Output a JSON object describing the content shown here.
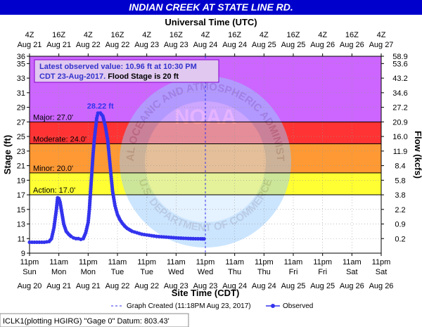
{
  "title": "INDIAN CREEK AT STATE LINE RD.",
  "top_axis_title": "Universal Time (UTC)",
  "bottom_axis_title": "Site Time (CDT)",
  "left_axis_title": "Stage (ft)",
  "right_axis_title": "Flow (kcfs)",
  "info_box": {
    "line1": "Latest observed value: 10.96 ft at 10:30 PM",
    "line2_blue": "CDT 23-Aug-2017.",
    "line2_black": " Flood Stage is 20 ft"
  },
  "peak_label": "28.22 ft",
  "legend": {
    "created_label": "Graph Created (11:18PM Aug 23, 2017)",
    "observed_label": "Observed"
  },
  "footer": "ICLK1(plotting HGIRG) \"Gage 0\" Datum: 803.43'",
  "watermark": {
    "center": "NOAA",
    "top_arc": "NATIONAL OCEANIC AND ATMOSPHERIC ADMINISTRATION",
    "bottom_arc": "U.S. DEPARTMENT OF COMMERCE"
  },
  "colors": {
    "title_bg": "#0000cc",
    "series": "#3333ee",
    "major": "#cc66ff",
    "moderate": "#ff3333",
    "minor": "#ff9933",
    "action": "#ffff33",
    "info_bg": "#e0c8f0",
    "info_border": "#8800cc",
    "info_blue": "#3333cc"
  },
  "chart_data": {
    "type": "line",
    "title": "INDIAN CREEK AT STATE LINE RD.",
    "xlabel": "Site Time (CDT)",
    "ylabel": "Stage (ft)",
    "y2label": "Flow (kcfs)",
    "ylim": [
      9,
      36
    ],
    "y_ticks": [
      9,
      11,
      13,
      15,
      17,
      19,
      21,
      23,
      25,
      27,
      29,
      31,
      33,
      35,
      36
    ],
    "y2_ticks": [
      {
        "stage": 11,
        "label": "0.2"
      },
      {
        "stage": 13,
        "label": "0.9"
      },
      {
        "stage": 15,
        "label": "2.2"
      },
      {
        "stage": 17,
        "label": "3.8"
      },
      {
        "stage": 19,
        "label": "5.8"
      },
      {
        "stage": 21,
        "label": "8.4"
      },
      {
        "stage": 23,
        "label": "11.9"
      },
      {
        "stage": 25,
        "label": "16.0"
      },
      {
        "stage": 27,
        "label": "20.9"
      },
      {
        "stage": 29,
        "label": "27.2"
      },
      {
        "stage": 31,
        "label": "34.6"
      },
      {
        "stage": 33,
        "label": "43.2"
      },
      {
        "stage": 35,
        "label": "53.6"
      },
      {
        "stage": 36,
        "label": "58.9"
      }
    ],
    "x_ticks_bottom": [
      {
        "l1": "11pm",
        "l2": "Sun",
        "l3": "Aug 20"
      },
      {
        "l1": "11am",
        "l2": "Mon",
        "l3": "Aug 21"
      },
      {
        "l1": "11pm",
        "l2": "Mon",
        "l3": "Aug 21"
      },
      {
        "l1": "11am",
        "l2": "Tue",
        "l3": "Aug 22"
      },
      {
        "l1": "11pm",
        "l2": "Tue",
        "l3": "Aug 22"
      },
      {
        "l1": "11am",
        "l2": "Wed",
        "l3": "Aug 23"
      },
      {
        "l1": "11pm",
        "l2": "Wed",
        "l3": "Aug 23"
      },
      {
        "l1": "11am",
        "l2": "Thu",
        "l3": "Aug 24"
      },
      {
        "l1": "11pm",
        "l2": "Thu",
        "l3": "Aug 24"
      },
      {
        "l1": "11am",
        "l2": "Fri",
        "l3": "Aug 25"
      },
      {
        "l1": "11pm",
        "l2": "Fri",
        "l3": "Aug 25"
      },
      {
        "l1": "11am",
        "l2": "Sat",
        "l3": "Aug 26"
      },
      {
        "l1": "11pm",
        "l2": "Sat",
        "l3": "Aug 26"
      }
    ],
    "x_ticks_top": [
      {
        "l1": "4Z",
        "l2": "Aug 21"
      },
      {
        "l1": "16Z",
        "l2": "Aug 21"
      },
      {
        "l1": "4Z",
        "l2": "Aug 22"
      },
      {
        "l1": "16Z",
        "l2": "Aug 22"
      },
      {
        "l1": "4Z",
        "l2": "Aug 23"
      },
      {
        "l1": "16Z",
        "l2": "Aug 23"
      },
      {
        "l1": "4Z",
        "l2": "Aug 24"
      },
      {
        "l1": "16Z",
        "l2": "Aug 24"
      },
      {
        "l1": "4Z",
        "l2": "Aug 25"
      },
      {
        "l1": "16Z",
        "l2": "Aug 25"
      },
      {
        "l1": "4Z",
        "l2": "Aug 26"
      },
      {
        "l1": "16Z",
        "l2": "Aug 26"
      },
      {
        "l1": "4Z",
        "l2": "Aug 27"
      }
    ],
    "bands": [
      {
        "name": "Major",
        "label": "Major: 27.0'",
        "from": 27,
        "to": 36,
        "color": "#cc66ff"
      },
      {
        "name": "Moderate",
        "label": "Moderate: 24.0'",
        "from": 24,
        "to": 27,
        "color": "#ff3333"
      },
      {
        "name": "Minor",
        "label": "Minor: 20.0'",
        "from": 20,
        "to": 24,
        "color": "#ff9933"
      },
      {
        "name": "Action",
        "label": "Action: 17.0'",
        "from": 17,
        "to": 20,
        "color": "#ffff33"
      }
    ],
    "graph_created_hours": 72,
    "observed": {
      "name": "Observed",
      "x_hours": [
        0,
        2,
        4,
        6,
        8,
        9,
        10,
        11,
        11.5,
        12,
        12.5,
        13,
        13.5,
        14,
        15,
        16,
        17,
        18,
        19,
        20,
        21,
        22,
        23,
        24,
        24.5,
        25,
        25.5,
        26,
        26.5,
        27,
        27.5,
        28,
        29,
        30,
        31,
        32,
        32.5,
        33,
        33.5,
        34,
        35,
        36,
        37,
        38,
        39,
        40,
        42,
        44,
        46,
        48,
        50,
        52,
        54,
        56,
        58,
        60,
        62,
        64,
        66,
        68,
        70,
        71.5
      ],
      "y_stage": [
        10.5,
        10.5,
        10.5,
        10.5,
        10.6,
        11.0,
        12.5,
        15.0,
        16.6,
        16.5,
        16.0,
        15.0,
        14.0,
        13.0,
        12.0,
        11.6,
        11.3,
        11.1,
        11.0,
        11.0,
        10.9,
        11.0,
        11.8,
        13.2,
        15.0,
        17.5,
        20.0,
        22.5,
        24.5,
        26.0,
        27.5,
        28.2,
        28.22,
        27.8,
        26.5,
        24.5,
        22.8,
        21.0,
        19.2,
        17.5,
        15.5,
        14.3,
        13.6,
        13.1,
        12.7,
        12.4,
        12.0,
        11.8,
        11.6,
        11.5,
        11.4,
        11.3,
        11.25,
        11.2,
        11.15,
        11.1,
        11.06,
        11.03,
        11.0,
        10.98,
        10.97,
        10.96
      ]
    }
  }
}
